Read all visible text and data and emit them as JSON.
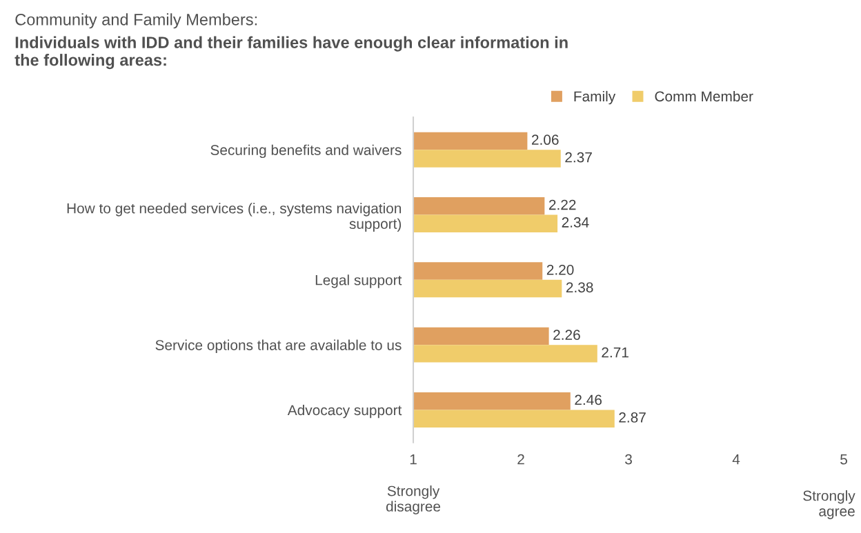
{
  "chart_data": {
    "type": "bar",
    "orientation": "horizontal",
    "title": "Community and Family Members:",
    "subtitle": "Individuals with IDD and their families have enough clear information in\nthe following areas:",
    "categories": [
      "Securing benefits and waivers",
      "How to get needed services (i.e., systems navigation\nsupport)",
      "Legal support",
      "Service options that are available to us",
      "Advocacy support"
    ],
    "series": [
      {
        "name": "Family",
        "color": "#e0a060",
        "values": [
          2.06,
          2.22,
          2.2,
          2.26,
          2.46
        ],
        "value_labels": [
          "2.06",
          "2.22",
          "2.20",
          "2.26",
          "2.46"
        ]
      },
      {
        "name": "Comm Member",
        "color": "#f0cc6a",
        "values": [
          2.37,
          2.34,
          2.38,
          2.71,
          2.87
        ],
        "value_labels": [
          "2.37",
          "2.34",
          "2.38",
          "2.71",
          "2.87"
        ]
      }
    ],
    "xlim": [
      1,
      5
    ],
    "xticks": [
      1,
      2,
      3,
      4,
      5
    ],
    "grid": false,
    "legend": "top right",
    "annotations": [
      "Strongly\ndisagree",
      "Strongly\nagree"
    ]
  }
}
